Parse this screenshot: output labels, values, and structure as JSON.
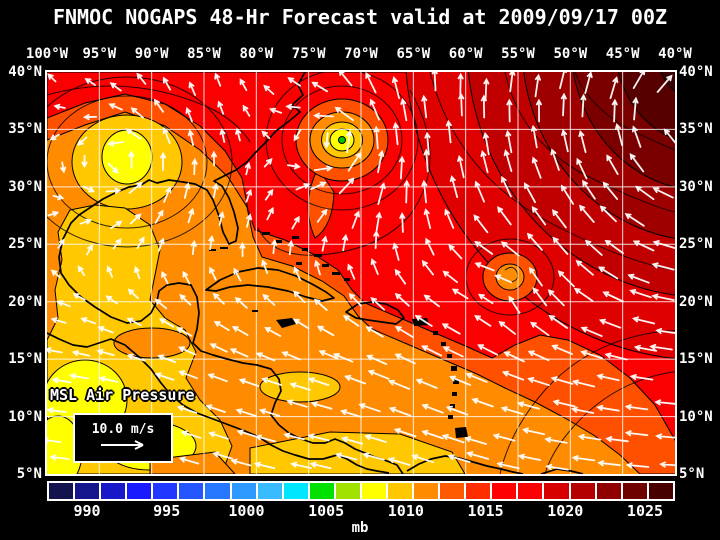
{
  "header": {
    "title": "FNMOC NOGAPS 48-Hr Forecast valid at 2009/09/17 00Z"
  },
  "map_overlay": {
    "field_label": "MSL Air Pressure",
    "wind_scale_label": "10.0 m/s"
  },
  "chart_data": {
    "type": "heatmap",
    "title": "FNMOC NOGAPS 48-Hr Forecast valid at 2009/09/17 00Z",
    "variable": "MSL Air Pressure",
    "units": "mb",
    "grid": true,
    "x_axis": {
      "side": "top",
      "ticks": [
        "100°W",
        "95°W",
        "90°W",
        "85°W",
        "80°W",
        "75°W",
        "70°W",
        "65°W",
        "60°W",
        "55°W",
        "50°W",
        "45°W",
        "40°W"
      ]
    },
    "y_axis": {
      "sides": [
        "left",
        "right"
      ],
      "ticks": [
        "40°N",
        "35°N",
        "30°N",
        "25°N",
        "20°N",
        "15°N",
        "10°N",
        "5°N"
      ]
    },
    "wind_vector_scale_mps": 10.0,
    "colorbar": {
      "units": "mb",
      "tick_labels": [
        "990",
        "995",
        "1000",
        "1005",
        "1010",
        "1015",
        "1020",
        "1025"
      ],
      "segment_colors": [
        "#13134e",
        "#16168c",
        "#1818c8",
        "#1a1aff",
        "#2038ff",
        "#2356ff",
        "#2878ff",
        "#2e9aff",
        "#38bcff",
        "#00e6ff",
        "#00e100",
        "#a0e100",
        "#ffff00",
        "#ffc800",
        "#ff8c00",
        "#ff5a00",
        "#ff2d00",
        "#ff0000",
        "#fa0000",
        "#d70000",
        "#b40000",
        "#910000",
        "#6e0000",
        "#460000"
      ]
    },
    "pressure_features": [
      {
        "type": "low",
        "approx_position": "95W 33N (Texas/Louisiana)",
        "approx_center_mb": 1007
      },
      {
        "type": "tropical-cyclone",
        "approx_position": "72W 34N (western Atlantic)",
        "approx_center_mb": 1004
      },
      {
        "type": "low",
        "approx_position": "55W 22N",
        "approx_center_mb": 1011
      },
      {
        "type": "high",
        "approx_position": "northeast corner of domain",
        "approx_center_mb": 1026
      }
    ]
  }
}
